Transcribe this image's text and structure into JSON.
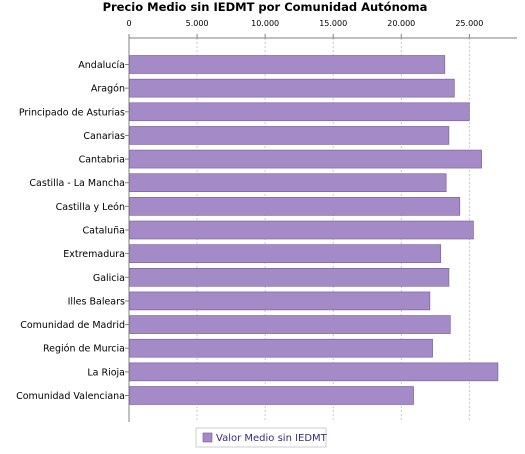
{
  "chart_data": {
    "type": "bar",
    "orientation": "horizontal",
    "title": "Precio Medio sin IEDMT por Comunidad Autónoma",
    "xlabel": "",
    "ylabel": "",
    "xlim": [
      0,
      28500
    ],
    "x_ticks": [
      0,
      5000,
      10000,
      15000,
      20000,
      25000
    ],
    "x_tick_labels": [
      "0",
      "5.000",
      "10.000",
      "15.000",
      "20.000",
      "25.000"
    ],
    "grid": true,
    "legend_position": "bottom",
    "categories": [
      "Andalucía",
      "Aragón",
      "Principado de Asturias",
      "Canarias",
      "Cantabria",
      "Castilla - La Mancha",
      "Castilla y León",
      "Cataluña",
      "Extremadura",
      "Galicia",
      "Illes Balears",
      "Comunidad de Madrid",
      "Región de Murcia",
      "La Rioja",
      "Comunidad Valenciana"
    ],
    "series": [
      {
        "name": "Valor Medio sin IEDMT",
        "color": "#a58ac8",
        "values": [
          23200,
          23900,
          25000,
          23500,
          25900,
          23300,
          24300,
          25300,
          22900,
          23500,
          22100,
          23600,
          22300,
          27100,
          20900
        ]
      }
    ]
  }
}
